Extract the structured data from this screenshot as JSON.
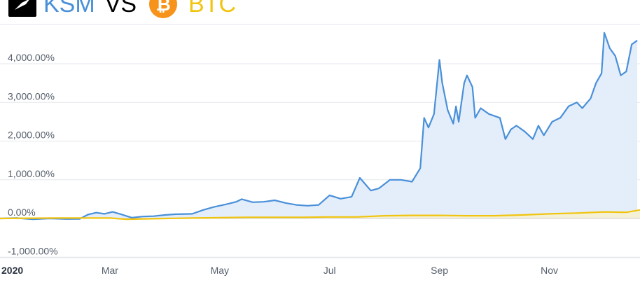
{
  "title": {
    "left": "KSM",
    "vs": "VS",
    "right": "BTC",
    "left_icon": "kusama-logo-icon",
    "right_icon": "bitcoin-logo-icon",
    "right_icon_glyph": "₿"
  },
  "colors": {
    "ksm": "#4a90d9",
    "ksm_fill": "#e3eefa",
    "btc": "#f1c40f",
    "grid": "#e3e7ec"
  },
  "chart_data": {
    "type": "area",
    "title": "",
    "xlabel": "",
    "ylabel": "",
    "ylim": [
      -1000,
      4850
    ],
    "yticks": [
      -1000,
      0,
      1000,
      2000,
      3000,
      4000
    ],
    "ytick_labels": [
      "-1,000.00%",
      "0.00%",
      "1,000.00%",
      "2,000.00%",
      "3,000.00%",
      "4,000.00%"
    ],
    "xticks": [
      {
        "label": "2020",
        "month": 0
      },
      {
        "label": "Mar",
        "month": 2
      },
      {
        "label": "May",
        "month": 4
      },
      {
        "label": "Jul",
        "month": 6
      },
      {
        "label": "Sep",
        "month": 8
      },
      {
        "label": "Nov",
        "month": 10
      }
    ],
    "xlim": [
      0,
      11.65
    ],
    "grid": true,
    "series": [
      {
        "name": "KSM",
        "values": [
          [
            0.0,
            0
          ],
          [
            0.3,
            10
          ],
          [
            0.6,
            -20
          ],
          [
            0.9,
            0
          ],
          [
            1.2,
            -15
          ],
          [
            1.45,
            -10
          ],
          [
            1.6,
            100
          ],
          [
            1.75,
            150
          ],
          [
            1.9,
            120
          ],
          [
            2.05,
            170
          ],
          [
            2.2,
            110
          ],
          [
            2.4,
            20
          ],
          [
            2.6,
            50
          ],
          [
            2.8,
            60
          ],
          [
            3.0,
            90
          ],
          [
            3.2,
            110
          ],
          [
            3.5,
            120
          ],
          [
            3.7,
            220
          ],
          [
            3.9,
            300
          ],
          [
            4.1,
            360
          ],
          [
            4.3,
            430
          ],
          [
            4.4,
            500
          ],
          [
            4.6,
            420
          ],
          [
            4.8,
            430
          ],
          [
            5.0,
            470
          ],
          [
            5.2,
            400
          ],
          [
            5.4,
            350
          ],
          [
            5.6,
            330
          ],
          [
            5.8,
            350
          ],
          [
            6.0,
            600
          ],
          [
            6.2,
            510
          ],
          [
            6.4,
            560
          ],
          [
            6.55,
            1050
          ],
          [
            6.75,
            720
          ],
          [
            6.9,
            780
          ],
          [
            7.1,
            1000
          ],
          [
            7.3,
            1000
          ],
          [
            7.5,
            950
          ],
          [
            7.65,
            1300
          ],
          [
            7.72,
            2600
          ],
          [
            7.8,
            2350
          ],
          [
            7.9,
            2700
          ],
          [
            8.0,
            4100
          ],
          [
            8.05,
            3500
          ],
          [
            8.15,
            2800
          ],
          [
            8.25,
            2450
          ],
          [
            8.3,
            2900
          ],
          [
            8.35,
            2500
          ],
          [
            8.45,
            3500
          ],
          [
            8.5,
            3700
          ],
          [
            8.6,
            3400
          ],
          [
            8.65,
            2600
          ],
          [
            8.75,
            2850
          ],
          [
            8.9,
            2700
          ],
          [
            9.1,
            2600
          ],
          [
            9.2,
            2050
          ],
          [
            9.3,
            2300
          ],
          [
            9.4,
            2400
          ],
          [
            9.55,
            2250
          ],
          [
            9.7,
            2050
          ],
          [
            9.8,
            2400
          ],
          [
            9.9,
            2150
          ],
          [
            10.05,
            2500
          ],
          [
            10.2,
            2600
          ],
          [
            10.35,
            2900
          ],
          [
            10.5,
            3000
          ],
          [
            10.6,
            2850
          ],
          [
            10.75,
            3100
          ],
          [
            10.85,
            3500
          ],
          [
            10.95,
            3750
          ],
          [
            11.0,
            4800
          ],
          [
            11.1,
            4400
          ],
          [
            11.2,
            4200
          ],
          [
            11.3,
            3700
          ],
          [
            11.4,
            3800
          ],
          [
            11.5,
            4500
          ],
          [
            11.6,
            4600
          ]
        ]
      },
      {
        "name": "BTC",
        "values": [
          [
            0.0,
            0
          ],
          [
            1.0,
            10
          ],
          [
            1.5,
            10
          ],
          [
            2.0,
            10
          ],
          [
            2.3,
            -20
          ],
          [
            2.6,
            -10
          ],
          [
            3.0,
            0
          ],
          [
            3.5,
            10
          ],
          [
            4.0,
            20
          ],
          [
            4.5,
            30
          ],
          [
            5.0,
            30
          ],
          [
            5.5,
            30
          ],
          [
            6.0,
            40
          ],
          [
            6.5,
            40
          ],
          [
            7.0,
            70
          ],
          [
            7.5,
            80
          ],
          [
            8.0,
            80
          ],
          [
            8.5,
            70
          ],
          [
            9.0,
            70
          ],
          [
            9.5,
            90
          ],
          [
            10.0,
            120
          ],
          [
            10.5,
            140
          ],
          [
            11.0,
            170
          ],
          [
            11.4,
            160
          ],
          [
            11.65,
            220
          ]
        ]
      }
    ]
  }
}
